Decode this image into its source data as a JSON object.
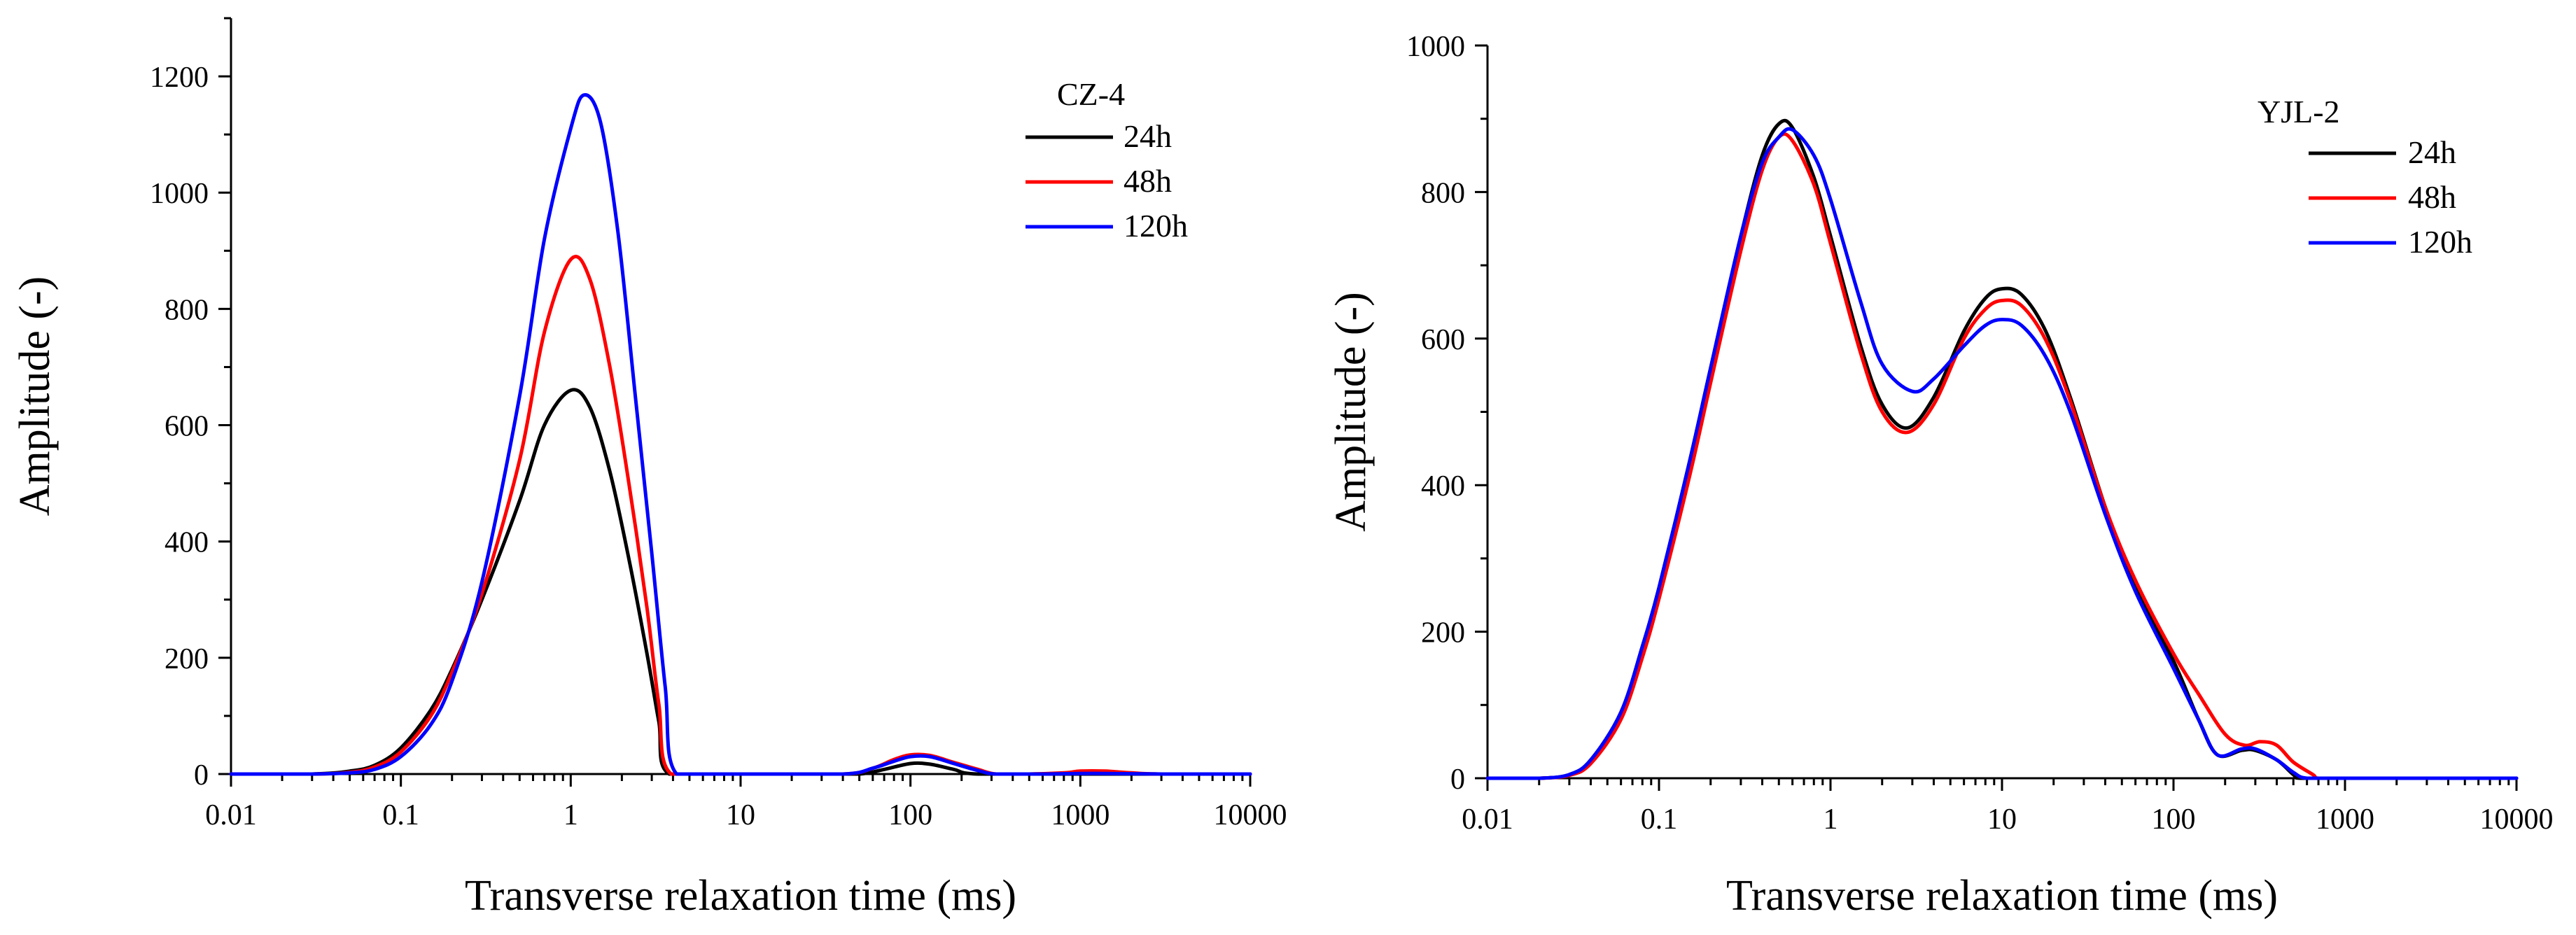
{
  "colors": {
    "24h": "#000000",
    "48h": "#ff0000",
    "120h": "#0000ff"
  },
  "chart_data": [
    {
      "type": "line",
      "title": "CZ-4",
      "xlabel": "Transverse relaxation time (ms)",
      "ylabel": "Amplitude (-)",
      "xscale": "log",
      "xlim": [
        0.01,
        10000
      ],
      "ylim": [
        0,
        1300
      ],
      "xticks": [
        0.01,
        0.1,
        1,
        10,
        100,
        1000,
        10000
      ],
      "xtick_labels": [
        "0.01",
        "0.1",
        "1",
        "10",
        "100",
        "1000",
        "10000"
      ],
      "yticks": [
        0,
        200,
        400,
        600,
        800,
        1000,
        1200
      ],
      "ytick_labels": [
        "0",
        "200",
        "400",
        "600",
        "800",
        "1000",
        "1200"
      ],
      "legend_title": "CZ-4",
      "legend_position": "top-right",
      "series": [
        {
          "name": "24h",
          "color": "#000000",
          "points": [
            [
              0.01,
              0
            ],
            [
              0.03,
              0
            ],
            [
              0.05,
              5
            ],
            [
              0.07,
              15
            ],
            [
              0.1,
              45
            ],
            [
              0.15,
              110
            ],
            [
              0.2,
              180
            ],
            [
              0.3,
              300
            ],
            [
              0.5,
              470
            ],
            [
              0.7,
              600
            ],
            [
              1,
              660
            ],
            [
              1.3,
              630
            ],
            [
              1.7,
              520
            ],
            [
              2.2,
              370
            ],
            [
              2.8,
              210
            ],
            [
              3.3,
              90
            ],
            [
              3.8,
              0
            ],
            [
              10,
              0
            ],
            [
              30,
              0
            ],
            [
              50,
              0
            ],
            [
              70,
              8
            ],
            [
              100,
              18
            ],
            [
              130,
              17
            ],
            [
              180,
              8
            ],
            [
              250,
              0
            ],
            [
              1000,
              0
            ],
            [
              10000,
              0
            ]
          ]
        },
        {
          "name": "48h",
          "color": "#ff0000",
          "points": [
            [
              0.01,
              0
            ],
            [
              0.03,
              0
            ],
            [
              0.05,
              3
            ],
            [
              0.07,
              12
            ],
            [
              0.1,
              38
            ],
            [
              0.15,
              100
            ],
            [
              0.2,
              175
            ],
            [
              0.3,
              310
            ],
            [
              0.5,
              540
            ],
            [
              0.7,
              760
            ],
            [
              1,
              885
            ],
            [
              1.3,
              850
            ],
            [
              1.7,
              700
            ],
            [
              2.2,
              500
            ],
            [
              2.8,
              290
            ],
            [
              3.3,
              120
            ],
            [
              3.9,
              0
            ],
            [
              10,
              0
            ],
            [
              40,
              0
            ],
            [
              60,
              10
            ],
            [
              80,
              25
            ],
            [
              100,
              33
            ],
            [
              130,
              32
            ],
            [
              180,
              20
            ],
            [
              250,
              8
            ],
            [
              320,
              0
            ],
            [
              500,
              0
            ],
            [
              800,
              2
            ],
            [
              1000,
              5
            ],
            [
              1400,
              5
            ],
            [
              2000,
              2
            ],
            [
              3000,
              0
            ],
            [
              10000,
              0
            ]
          ]
        },
        {
          "name": "120h",
          "color": "#0000ff",
          "points": [
            [
              0.01,
              0
            ],
            [
              0.03,
              0
            ],
            [
              0.05,
              2
            ],
            [
              0.07,
              8
            ],
            [
              0.1,
              30
            ],
            [
              0.15,
              85
            ],
            [
              0.2,
              160
            ],
            [
              0.3,
              330
            ],
            [
              0.5,
              650
            ],
            [
              0.7,
              920
            ],
            [
              1,
              1110
            ],
            [
              1.2,
              1168
            ],
            [
              1.5,
              1120
            ],
            [
              1.9,
              930
            ],
            [
              2.4,
              650
            ],
            [
              3,
              380
            ],
            [
              3.6,
              150
            ],
            [
              4.2,
              0
            ],
            [
              10,
              0
            ],
            [
              40,
              0
            ],
            [
              60,
              10
            ],
            [
              80,
              22
            ],
            [
              100,
              30
            ],
            [
              130,
              30
            ],
            [
              180,
              18
            ],
            [
              250,
              6
            ],
            [
              320,
              0
            ],
            [
              600,
              0
            ],
            [
              1000,
              1
            ],
            [
              1400,
              1
            ],
            [
              3000,
              0
            ],
            [
              10000,
              0
            ]
          ]
        }
      ]
    },
    {
      "type": "line",
      "title": "YJL-2",
      "xlabel": "Transverse relaxation time (ms)",
      "ylabel": "Amplitude (-)",
      "xscale": "log",
      "xlim": [
        0.01,
        10000
      ],
      "ylim": [
        0,
        1000
      ],
      "xticks": [
        0.01,
        0.1,
        1,
        10,
        100,
        1000,
        10000
      ],
      "xtick_labels": [
        "0.01",
        "0.1",
        "1",
        "10",
        "100",
        "1000",
        "10000"
      ],
      "yticks": [
        0,
        200,
        400,
        600,
        800,
        1000
      ],
      "ytick_labels": [
        "0",
        "200",
        "400",
        "600",
        "800",
        "1000"
      ],
      "legend_title": "YJL-2",
      "legend_position": "top-right",
      "series": [
        {
          "name": "24h",
          "color": "#000000",
          "points": [
            [
              0.01,
              0
            ],
            [
              0.02,
              0
            ],
            [
              0.03,
              5
            ],
            [
              0.04,
              25
            ],
            [
              0.06,
              90
            ],
            [
              0.08,
              180
            ],
            [
              0.1,
              260
            ],
            [
              0.15,
              430
            ],
            [
              0.2,
              560
            ],
            [
              0.3,
              740
            ],
            [
              0.4,
              850
            ],
            [
              0.5,
              893
            ],
            [
              0.6,
              888
            ],
            [
              0.8,
              820
            ],
            [
              1,
              740
            ],
            [
              1.5,
              590
            ],
            [
              2,
              510
            ],
            [
              2.8,
              478
            ],
            [
              4,
              520
            ],
            [
              6,
              610
            ],
            [
              8,
              655
            ],
            [
              10,
              668
            ],
            [
              13,
              660
            ],
            [
              18,
              610
            ],
            [
              25,
              520
            ],
            [
              40,
              370
            ],
            [
              60,
              260
            ],
            [
              100,
              160
            ],
            [
              140,
              80
            ],
            [
              180,
              32
            ],
            [
              250,
              38
            ],
            [
              300,
              38
            ],
            [
              400,
              25
            ],
            [
              500,
              5
            ],
            [
              550,
              0
            ],
            [
              1000,
              0
            ],
            [
              10000,
              0
            ]
          ]
        },
        {
          "name": "48h",
          "color": "#ff0000",
          "points": [
            [
              0.01,
              0
            ],
            [
              0.02,
              0
            ],
            [
              0.03,
              4
            ],
            [
              0.04,
              20
            ],
            [
              0.06,
              80
            ],
            [
              0.08,
              165
            ],
            [
              0.1,
              245
            ],
            [
              0.15,
              410
            ],
            [
              0.2,
              540
            ],
            [
              0.3,
              720
            ],
            [
              0.4,
              830
            ],
            [
              0.5,
              875
            ],
            [
              0.6,
              870
            ],
            [
              0.8,
              810
            ],
            [
              1,
              730
            ],
            [
              1.5,
              580
            ],
            [
              2,
              500
            ],
            [
              2.8,
              472
            ],
            [
              4,
              510
            ],
            [
              6,
              600
            ],
            [
              8,
              640
            ],
            [
              10,
              652
            ],
            [
              13,
              645
            ],
            [
              18,
              598
            ],
            [
              25,
              515
            ],
            [
              40,
              370
            ],
            [
              60,
              270
            ],
            [
              100,
              170
            ],
            [
              140,
              115
            ],
            [
              200,
              60
            ],
            [
              260,
              45
            ],
            [
              320,
              50
            ],
            [
              400,
              45
            ],
            [
              500,
              22
            ],
            [
              650,
              5
            ],
            [
              700,
              0
            ],
            [
              1000,
              0
            ],
            [
              10000,
              0
            ]
          ]
        },
        {
          "name": "120h",
          "color": "#0000ff",
          "points": [
            [
              0.01,
              0
            ],
            [
              0.02,
              0
            ],
            [
              0.03,
              5
            ],
            [
              0.04,
              25
            ],
            [
              0.06,
              90
            ],
            [
              0.08,
              180
            ],
            [
              0.1,
              260
            ],
            [
              0.15,
              430
            ],
            [
              0.2,
              560
            ],
            [
              0.3,
              740
            ],
            [
              0.4,
              840
            ],
            [
              0.5,
              875
            ],
            [
              0.6,
              885
            ],
            [
              0.8,
              850
            ],
            [
              1,
              790
            ],
            [
              1.5,
              650
            ],
            [
              2,
              565
            ],
            [
              3,
              528
            ],
            [
              4,
              545
            ],
            [
              6,
              590
            ],
            [
              8,
              618
            ],
            [
              10,
              626
            ],
            [
              13,
              618
            ],
            [
              18,
              575
            ],
            [
              25,
              500
            ],
            [
              40,
              360
            ],
            [
              60,
              255
            ],
            [
              100,
              150
            ],
            [
              140,
              80
            ],
            [
              180,
              32
            ],
            [
              250,
              40
            ],
            [
              300,
              40
            ],
            [
              400,
              25
            ],
            [
              500,
              8
            ],
            [
              600,
              0
            ],
            [
              1000,
              0
            ],
            [
              10000,
              0
            ]
          ]
        }
      ]
    }
  ]
}
